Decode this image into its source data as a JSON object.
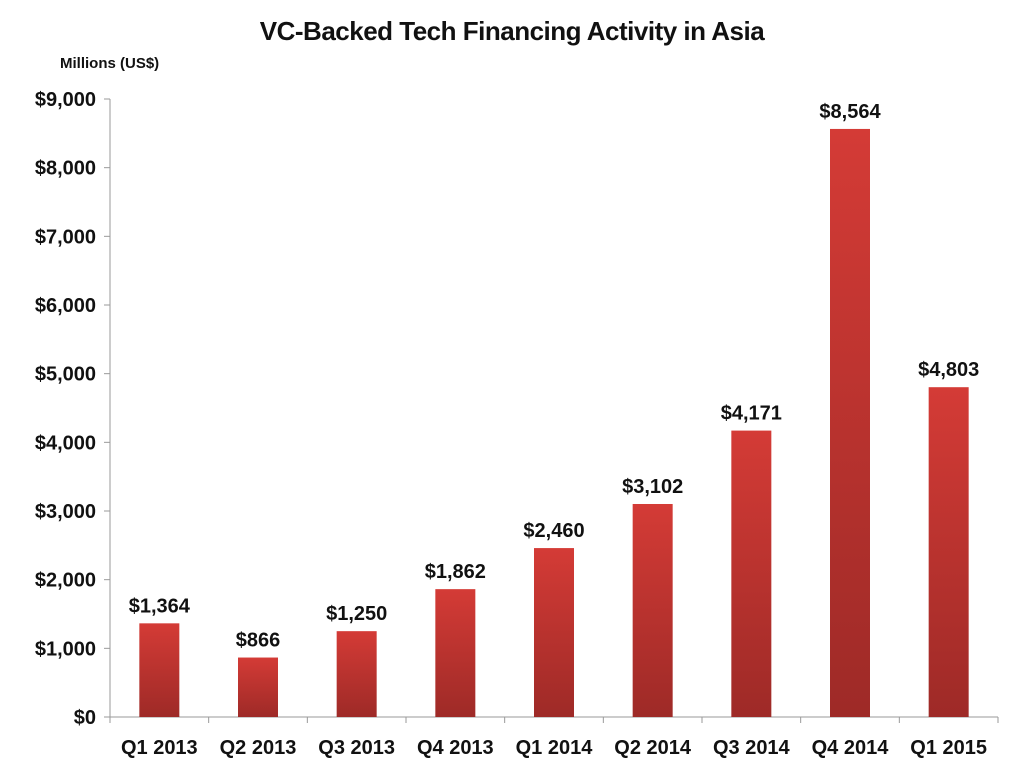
{
  "chart_data": {
    "type": "bar",
    "title": "VC-Backed Tech Financing Activity in Asia",
    "unit_label": "Millions (US$)",
    "xlabel": "",
    "ylabel": "",
    "categories": [
      "Q1 2013",
      "Q2 2013",
      "Q3 2013",
      "Q4 2013",
      "Q1 2014",
      "Q2 2014",
      "Q3 2014",
      "Q4 2014",
      "Q1 2015"
    ],
    "values": [
      1364,
      866,
      1250,
      1862,
      2460,
      3102,
      4171,
      8564,
      4803
    ],
    "value_labels": [
      "$1,364",
      "$866",
      "$1,250",
      "$1,862",
      "$2,460",
      "$3,102",
      "$4,171",
      "$8,564",
      "$4,803"
    ],
    "ylim": [
      0,
      9000
    ],
    "yticks": [
      0,
      1000,
      2000,
      3000,
      4000,
      5000,
      6000,
      7000,
      8000,
      9000
    ],
    "ytick_labels": [
      "$0",
      "$1,000",
      "$2,000",
      "$3,000",
      "$4,000",
      "$5,000",
      "$6,000",
      "$7,000",
      "$8,000",
      "$9,000"
    ],
    "grid": false,
    "legend": "none",
    "colors": {
      "bar_top": "#d43b36",
      "bar_bottom": "#9e2a27",
      "axis": "#9a9a9a"
    }
  }
}
